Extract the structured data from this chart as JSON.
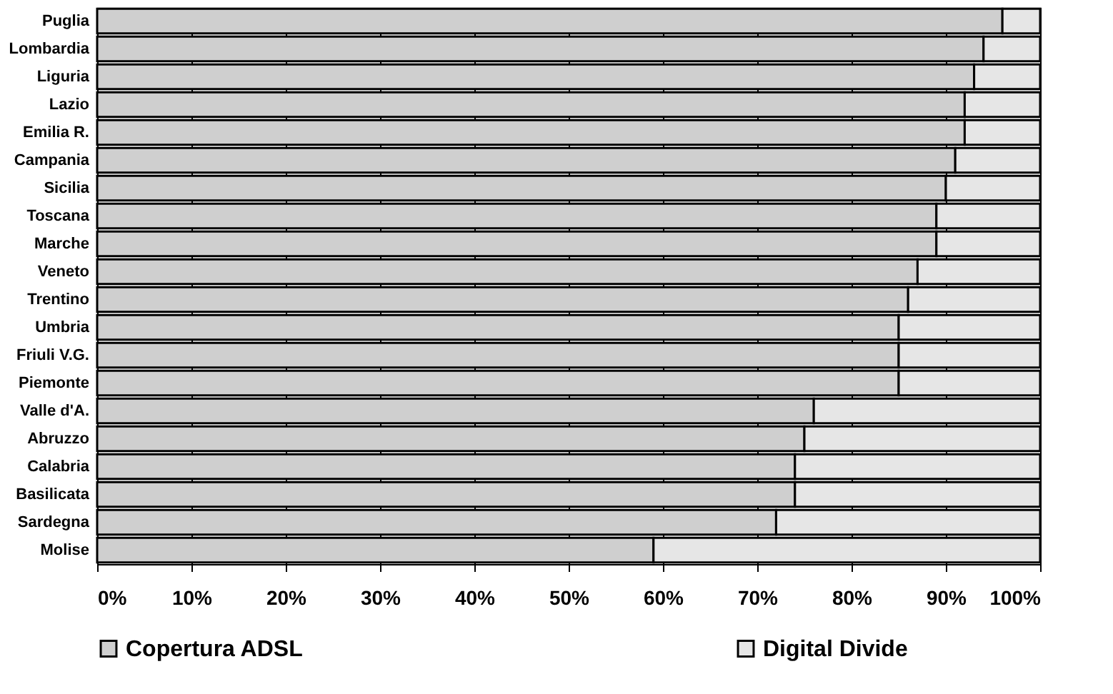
{
  "chart_data": {
    "type": "bar",
    "orientation": "horizontal",
    "stacked": true,
    "categories": [
      "Puglia",
      "Lombardia",
      "Liguria",
      "Lazio",
      "Emilia R.",
      "Campania",
      "Sicilia",
      "Toscana",
      "Marche",
      "Veneto",
      "Trentino",
      "Umbria",
      "Friuli V.G.",
      "Piemonte",
      "Valle d'A.",
      "Abruzzo",
      "Calabria",
      "Basilicata",
      "Sardegna",
      "Molise"
    ],
    "series": [
      {
        "name": "Copertura ADSL",
        "color": "#cfcfcf",
        "values": [
          96,
          94,
          93,
          92,
          92,
          91,
          90,
          89,
          89,
          87,
          86,
          85,
          85,
          85,
          76,
          75,
          74,
          74,
          72,
          59
        ]
      },
      {
        "name": "Digital Divide",
        "color": "#e6e6e6",
        "values": [
          4,
          6,
          7,
          8,
          8,
          9,
          10,
          11,
          11,
          13,
          14,
          15,
          15,
          15,
          24,
          25,
          26,
          26,
          28,
          41
        ]
      }
    ],
    "xlim": [
      0,
      100
    ],
    "xticks": [
      {
        "value": 0,
        "label": "0%"
      },
      {
        "value": 10,
        "label": "10%"
      },
      {
        "value": 20,
        "label": "20%"
      },
      {
        "value": 30,
        "label": "30%"
      },
      {
        "value": 40,
        "label": "40%"
      },
      {
        "value": 50,
        "label": "50%"
      },
      {
        "value": 60,
        "label": "60%"
      },
      {
        "value": 70,
        "label": "70%"
      },
      {
        "value": 80,
        "label": "80%"
      },
      {
        "value": 90,
        "label": "90%"
      },
      {
        "value": 100,
        "label": "100%"
      }
    ],
    "grid": "x",
    "legend": "bottom"
  }
}
